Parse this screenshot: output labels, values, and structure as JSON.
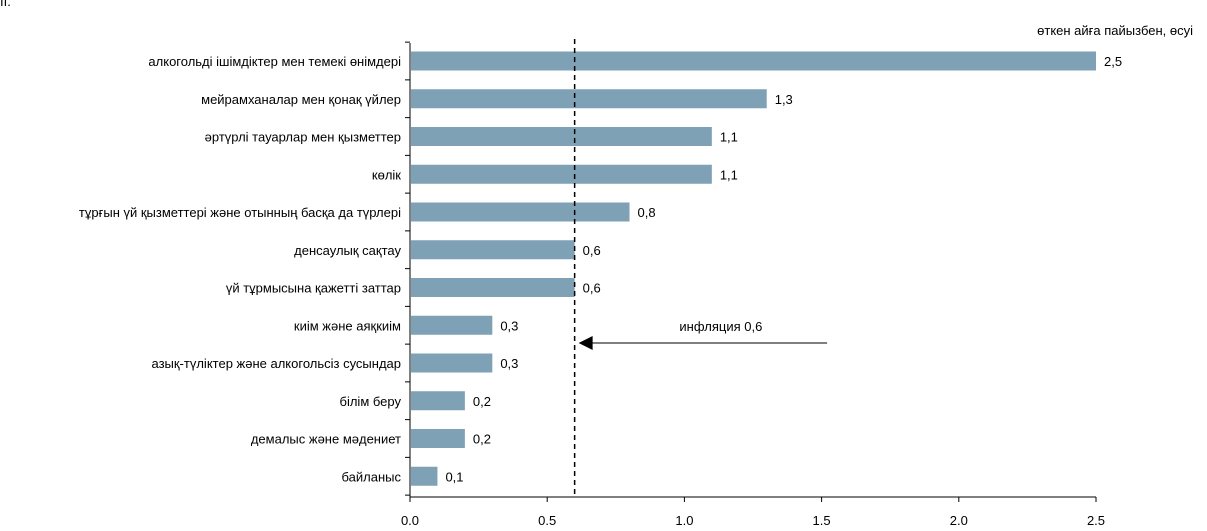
{
  "corner_text": "II.",
  "chart_data": {
    "type": "bar",
    "orientation": "horizontal",
    "unit_label": "өткен айға пайызбен, өсуі",
    "categories": [
      "алкогольді ішімдіктер мен темекі өнімдері",
      "мейрамханалар мен қонақ үйлер",
      "әртүрлі тауарлар мен қызметтер",
      "көлік",
      "тұрғын үй қызметтері және отынның басқа да түрлері",
      "денсаулық сақтау",
      "үй тұрмысына қажетті заттар",
      "киім және аяқкиім",
      "азық-түліктер және алкогольсіз сусындар",
      "білім беру",
      "демалыс және мәдениет",
      "байланыс"
    ],
    "values": [
      2.5,
      1.3,
      1.1,
      1.1,
      0.8,
      0.6,
      0.6,
      0.3,
      0.3,
      0.2,
      0.2,
      0.1
    ],
    "value_labels": [
      "2,5",
      "1,3",
      "1,1",
      "1,1",
      "0,8",
      "0,6",
      "0,6",
      "0,3",
      "0,3",
      "0,2",
      "0,2",
      "0,1"
    ],
    "xlim": [
      0,
      2.5
    ],
    "xticks": [
      0,
      0.5,
      1.0,
      1.5,
      2.0,
      2.5
    ],
    "xtick_labels": [
      "0.0",
      "0.5",
      "1.0",
      "1.5",
      "2.0",
      "2.5"
    ],
    "bar_color": "#7fa1b5",
    "grid": false,
    "reference_line": {
      "value": 0.6,
      "style": "dashed",
      "annotation": "инфляция 0,6",
      "arrow_from": 1.52
    }
  }
}
